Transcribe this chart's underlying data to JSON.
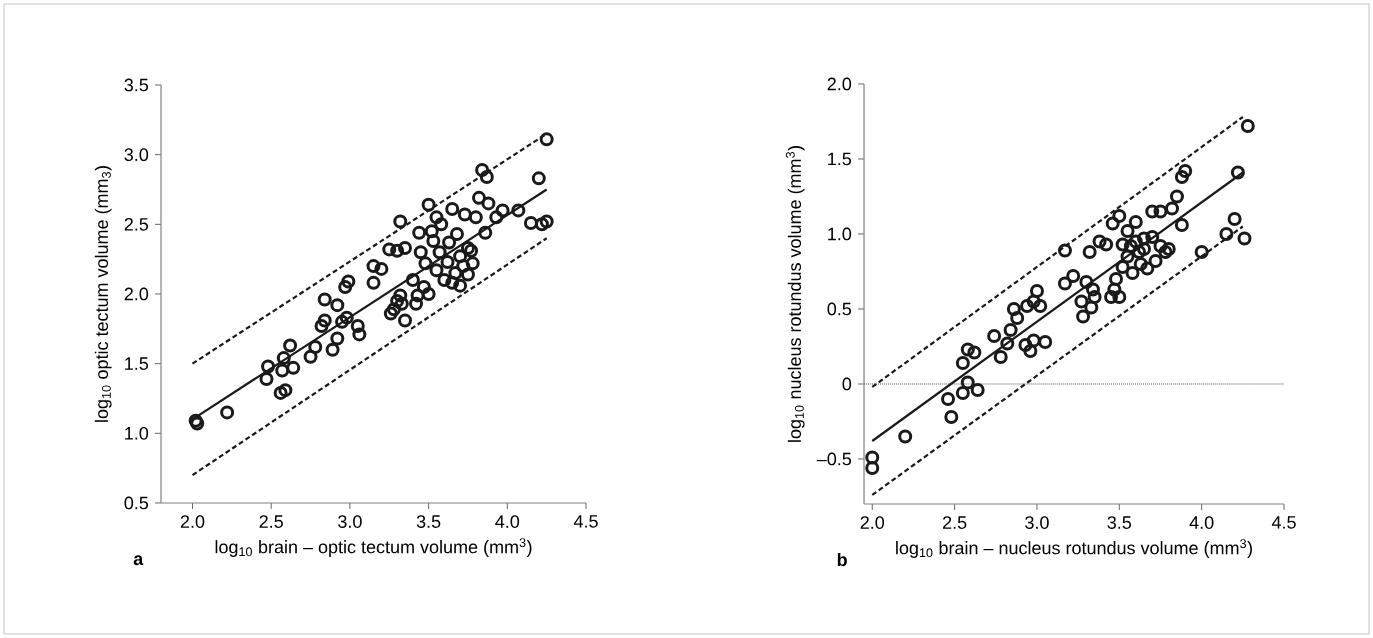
{
  "chart_data": [
    {
      "type": "scatter",
      "xlabel": "log$_{10}$ brain – optic tectum volume (mm$^{3}$)",
      "ylabel": "log$_{10}$ optic tectum volume (mm$_{3}$)",
      "annotations": [
        "a"
      ],
      "xlim": [
        1.8,
        4.5
      ],
      "ylim": [
        0.5,
        3.5
      ],
      "xticks": [
        {
          "value": 2,
          "label": "2.0"
        },
        2.5,
        {
          "value": 3,
          "label": "3.0"
        },
        3.5,
        {
          "value": 4,
          "label": "4.0"
        },
        4.5
      ],
      "yticks": [
        0.5,
        {
          "value": 1,
          "label": "1.0"
        },
        1.5,
        {
          "value": 2,
          "label": "2.0"
        },
        2.5,
        {
          "value": 3,
          "label": "3.0"
        },
        3.5
      ],
      "series": [
        {
          "type": "scatter",
          "marker": "circle",
          "color": "#1a1a1a",
          "x": [
            2.02,
            2.03,
            2.22,
            2.47,
            2.48,
            2.56,
            2.59,
            2.57,
            2.58,
            2.62,
            2.64,
            2.75,
            2.78,
            2.82,
            2.84,
            2.84,
            2.89,
            2.92,
            2.92,
            2.95,
            2.98,
            2.97,
            2.99,
            3.05,
            3.06,
            3.15,
            3.15,
            3.2,
            3.26,
            3.28,
            3.3,
            3.32,
            3.33,
            3.35,
            3.25,
            3.3,
            3.32,
            3.35,
            3.4,
            3.42,
            3.43,
            3.44,
            3.45,
            3.47,
            3.48,
            3.5,
            3.5,
            3.52,
            3.53,
            3.55,
            3.55,
            3.57,
            3.58,
            3.6,
            3.62,
            3.63,
            3.65,
            3.65,
            3.67,
            3.68,
            3.7,
            3.7,
            3.72,
            3.73,
            3.75,
            3.75,
            3.77,
            3.78,
            3.8,
            3.82,
            3.84,
            3.86,
            3.87,
            3.88,
            3.93,
            3.97,
            4.07,
            4.15,
            4.2,
            4.22,
            4.25,
            4.25
          ],
          "values": [
            1.09,
            1.07,
            1.15,
            1.39,
            1.48,
            1.29,
            1.31,
            1.45,
            1.54,
            1.63,
            1.47,
            1.55,
            1.62,
            1.77,
            1.81,
            1.96,
            1.6,
            1.68,
            1.92,
            1.8,
            1.83,
            2.05,
            2.09,
            1.77,
            1.71,
            2.08,
            2.2,
            2.18,
            1.86,
            1.89,
            1.95,
            1.99,
            1.93,
            1.81,
            2.32,
            2.31,
            2.52,
            2.33,
            2.1,
            1.93,
            1.99,
            2.44,
            2.3,
            2.05,
            2.22,
            2.0,
            2.64,
            2.45,
            2.38,
            2.55,
            2.17,
            2.3,
            2.5,
            2.1,
            2.23,
            2.37,
            2.61,
            2.08,
            2.15,
            2.43,
            2.06,
            2.27,
            2.2,
            2.57,
            2.33,
            2.14,
            2.31,
            2.22,
            2.55,
            2.69,
            2.89,
            2.44,
            2.84,
            2.65,
            2.55,
            2.6,
            2.6,
            2.51,
            2.83,
            2.5,
            2.52,
            3.11
          ]
        },
        {
          "type": "line",
          "line_style": "solid",
          "color": "#1a1a1a",
          "x": [
            2.0,
            4.25
          ],
          "values": [
            1.1,
            2.75
          ]
        },
        {
          "type": "line",
          "line_style": "dashed",
          "color": "#1a1a1a",
          "x": [
            2.0,
            4.25
          ],
          "values": [
            1.5,
            3.15
          ]
        },
        {
          "type": "line",
          "line_style": "dashed",
          "color": "#1a1a1a",
          "x": [
            2.0,
            4.25
          ],
          "values": [
            0.7,
            2.4
          ]
        }
      ]
    },
    {
      "type": "scatter",
      "xlabel": "log$_{10}$ brain – nucleus rotundus volume (mm$^{3}$)",
      "ylabel": "log$_{10}$ nucleus rotundus volume (mm$^{3}$)",
      "annotations": [
        "b"
      ],
      "xlim": [
        1.95,
        4.5
      ],
      "ylim": [
        -0.8,
        2.0
      ],
      "xticks": [
        {
          "value": 2,
          "label": "2.0"
        },
        2.5,
        {
          "value": 3,
          "label": "3.0"
        },
        3.5,
        {
          "value": 4,
          "label": "4.0"
        },
        4.5
      ],
      "yticks": [
        {
          "value": -0.5,
          "label": "–0.5"
        },
        0,
        0.5,
        {
          "value": 1,
          "label": "1.0"
        },
        1.5,
        {
          "value": 2,
          "label": "2.0"
        }
      ],
      "ref_lines": [
        {
          "axis": "y",
          "value": 0,
          "line_style": "dotted",
          "color": "#555555"
        }
      ],
      "series": [
        {
          "type": "scatter",
          "marker": "circle",
          "color": "#1a1a1a",
          "x": [
            2.0,
            2.0,
            2.2,
            2.46,
            2.48,
            2.55,
            2.58,
            2.64,
            2.55,
            2.58,
            2.62,
            2.74,
            2.78,
            2.82,
            2.84,
            2.86,
            2.88,
            2.93,
            2.96,
            2.98,
            2.94,
            2.98,
            3.0,
            3.02,
            3.05,
            3.17,
            3.17,
            3.22,
            3.27,
            3.28,
            3.3,
            3.32,
            3.33,
            3.34,
            3.35,
            3.38,
            3.42,
            3.45,
            3.46,
            3.47,
            3.48,
            3.5,
            3.5,
            3.52,
            3.52,
            3.55,
            3.55,
            3.57,
            3.58,
            3.6,
            3.6,
            3.62,
            3.63,
            3.65,
            3.65,
            3.67,
            3.7,
            3.7,
            3.72,
            3.75,
            3.75,
            3.78,
            3.8,
            3.82,
            3.85,
            3.88,
            3.9,
            3.88,
            4.0,
            4.15,
            4.2,
            4.22,
            4.26,
            4.28
          ],
          "values": [
            -0.49,
            -0.56,
            -0.35,
            -0.1,
            -0.22,
            -0.06,
            0.01,
            -0.04,
            0.14,
            0.23,
            0.21,
            0.32,
            0.18,
            0.27,
            0.36,
            0.5,
            0.44,
            0.26,
            0.22,
            0.29,
            0.52,
            0.55,
            0.62,
            0.52,
            0.28,
            0.67,
            0.89,
            0.72,
            0.55,
            0.45,
            0.68,
            0.88,
            0.51,
            0.63,
            0.58,
            0.95,
            0.93,
            0.58,
            1.07,
            0.63,
            0.7,
            1.12,
            0.58,
            0.93,
            0.78,
            1.02,
            0.85,
            0.92,
            0.74,
            1.08,
            0.95,
            0.88,
            0.8,
            0.97,
            0.9,
            0.77,
            1.15,
            0.98,
            0.82,
            1.15,
            0.92,
            0.88,
            0.9,
            1.17,
            1.25,
            1.38,
            1.42,
            1.06,
            0.88,
            1.0,
            1.1,
            1.41,
            0.97,
            1.72
          ]
        },
        {
          "type": "line",
          "line_style": "solid",
          "color": "#1a1a1a",
          "x": [
            2.0,
            4.25
          ],
          "values": [
            -0.38,
            1.41
          ]
        },
        {
          "type": "line",
          "line_style": "dashed",
          "color": "#1a1a1a",
          "x": [
            2.0,
            4.25
          ],
          "values": [
            -0.02,
            1.78
          ]
        },
        {
          "type": "line",
          "line_style": "dashed",
          "color": "#1a1a1a",
          "x": [
            2.0,
            4.25
          ],
          "values": [
            -0.74,
            1.05
          ]
        }
      ]
    }
  ]
}
